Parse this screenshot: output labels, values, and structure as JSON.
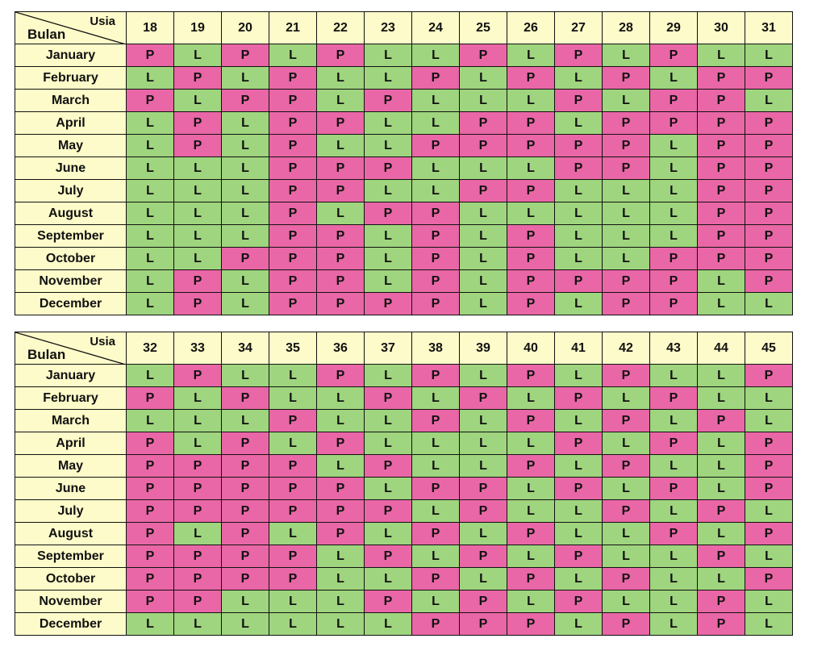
{
  "tables": [
    {
      "corner_top": "Usia",
      "corner_bottom": "Bulan",
      "ages": [
        "18",
        "19",
        "20",
        "21",
        "22",
        "23",
        "24",
        "25",
        "26",
        "27",
        "28",
        "29",
        "30",
        "31"
      ],
      "rows": [
        {
          "month": "January",
          "cells": [
            "P",
            "L",
            "P",
            "L",
            "P",
            "L",
            "L",
            "P",
            "L",
            "P",
            "L",
            "P",
            "L",
            "L"
          ]
        },
        {
          "month": "February",
          "cells": [
            "L",
            "P",
            "L",
            "P",
            "L",
            "L",
            "P",
            "L",
            "P",
            "L",
            "P",
            "L",
            "P",
            "P"
          ]
        },
        {
          "month": "March",
          "cells": [
            "P",
            "L",
            "P",
            "P",
            "L",
            "P",
            "L",
            "L",
            "L",
            "P",
            "L",
            "P",
            "P",
            "L"
          ]
        },
        {
          "month": "April",
          "cells": [
            "L",
            "P",
            "L",
            "P",
            "P",
            "L",
            "L",
            "P",
            "P",
            "L",
            "P",
            "P",
            "P",
            "P"
          ]
        },
        {
          "month": "May",
          "cells": [
            "L",
            "P",
            "L",
            "P",
            "L",
            "L",
            "P",
            "P",
            "P",
            "P",
            "P",
            "L",
            "P",
            "P"
          ]
        },
        {
          "month": "June",
          "cells": [
            "L",
            "L",
            "L",
            "P",
            "P",
            "P",
            "L",
            "L",
            "L",
            "P",
            "P",
            "L",
            "P",
            "P"
          ]
        },
        {
          "month": "July",
          "cells": [
            "L",
            "L",
            "L",
            "P",
            "P",
            "L",
            "L",
            "P",
            "P",
            "L",
            "L",
            "L",
            "P",
            "P"
          ]
        },
        {
          "month": "August",
          "cells": [
            "L",
            "L",
            "L",
            "P",
            "L",
            "P",
            "P",
            "L",
            "L",
            "L",
            "L",
            "L",
            "P",
            "P"
          ]
        },
        {
          "month": "September",
          "cells": [
            "L",
            "L",
            "L",
            "P",
            "P",
            "L",
            "P",
            "L",
            "P",
            "L",
            "L",
            "L",
            "P",
            "P"
          ]
        },
        {
          "month": "October",
          "cells": [
            "L",
            "L",
            "P",
            "P",
            "P",
            "L",
            "P",
            "L",
            "P",
            "L",
            "L",
            "P",
            "P",
            "P"
          ]
        },
        {
          "month": "November",
          "cells": [
            "L",
            "P",
            "L",
            "P",
            "P",
            "L",
            "P",
            "L",
            "P",
            "P",
            "P",
            "P",
            "L",
            "P"
          ]
        },
        {
          "month": "December",
          "cells": [
            "L",
            "P",
            "L",
            "P",
            "P",
            "P",
            "P",
            "L",
            "P",
            "L",
            "P",
            "P",
            "L",
            "L"
          ]
        }
      ]
    },
    {
      "corner_top": "Usia",
      "corner_bottom": "Bulan",
      "ages": [
        "32",
        "33",
        "34",
        "35",
        "36",
        "37",
        "38",
        "39",
        "40",
        "41",
        "42",
        "43",
        "44",
        "45"
      ],
      "rows": [
        {
          "month": "January",
          "cells": [
            "L",
            "P",
            "L",
            "L",
            "P",
            "L",
            "P",
            "L",
            "P",
            "L",
            "P",
            "L",
            "L",
            "P"
          ]
        },
        {
          "month": "February",
          "cells": [
            "P",
            "L",
            "P",
            "L",
            "L",
            "P",
            "L",
            "P",
            "L",
            "P",
            "L",
            "P",
            "L",
            "L"
          ]
        },
        {
          "month": "March",
          "cells": [
            "L",
            "L",
            "L",
            "P",
            "L",
            "L",
            "P",
            "L",
            "P",
            "L",
            "P",
            "L",
            "P",
            "L"
          ]
        },
        {
          "month": "April",
          "cells": [
            "P",
            "L",
            "P",
            "L",
            "P",
            "L",
            "L",
            "L",
            "L",
            "P",
            "L",
            "P",
            "L",
            "P"
          ]
        },
        {
          "month": "May",
          "cells": [
            "P",
            "P",
            "P",
            "P",
            "L",
            "P",
            "L",
            "L",
            "P",
            "L",
            "P",
            "L",
            "L",
            "P"
          ]
        },
        {
          "month": "June",
          "cells": [
            "P",
            "P",
            "P",
            "P",
            "P",
            "L",
            "P",
            "P",
            "L",
            "P",
            "L",
            "P",
            "L",
            "P"
          ]
        },
        {
          "month": "July",
          "cells": [
            "P",
            "P",
            "P",
            "P",
            "P",
            "P",
            "L",
            "P",
            "L",
            "L",
            "P",
            "L",
            "P",
            "L"
          ]
        },
        {
          "month": "August",
          "cells": [
            "P",
            "L",
            "P",
            "L",
            "P",
            "L",
            "P",
            "L",
            "P",
            "L",
            "L",
            "P",
            "L",
            "P"
          ]
        },
        {
          "month": "September",
          "cells": [
            "P",
            "P",
            "P",
            "P",
            "L",
            "P",
            "L",
            "P",
            "L",
            "P",
            "L",
            "L",
            "P",
            "L"
          ]
        },
        {
          "month": "October",
          "cells": [
            "P",
            "P",
            "P",
            "P",
            "L",
            "L",
            "P",
            "L",
            "P",
            "L",
            "P",
            "L",
            "L",
            "P"
          ]
        },
        {
          "month": "November",
          "cells": [
            "P",
            "P",
            "L",
            "L",
            "L",
            "P",
            "L",
            "P",
            "L",
            "P",
            "L",
            "L",
            "P",
            "L"
          ]
        },
        {
          "month": "December",
          "cells": [
            "L",
            "L",
            "L",
            "L",
            "L",
            "L",
            "P",
            "P",
            "P",
            "L",
            "P",
            "L",
            "P",
            "L"
          ]
        }
      ]
    }
  ],
  "colors": {
    "L": "#9fd57e",
    "P": "#e967a6",
    "header": "#fdfbc9",
    "border": "#111111"
  }
}
